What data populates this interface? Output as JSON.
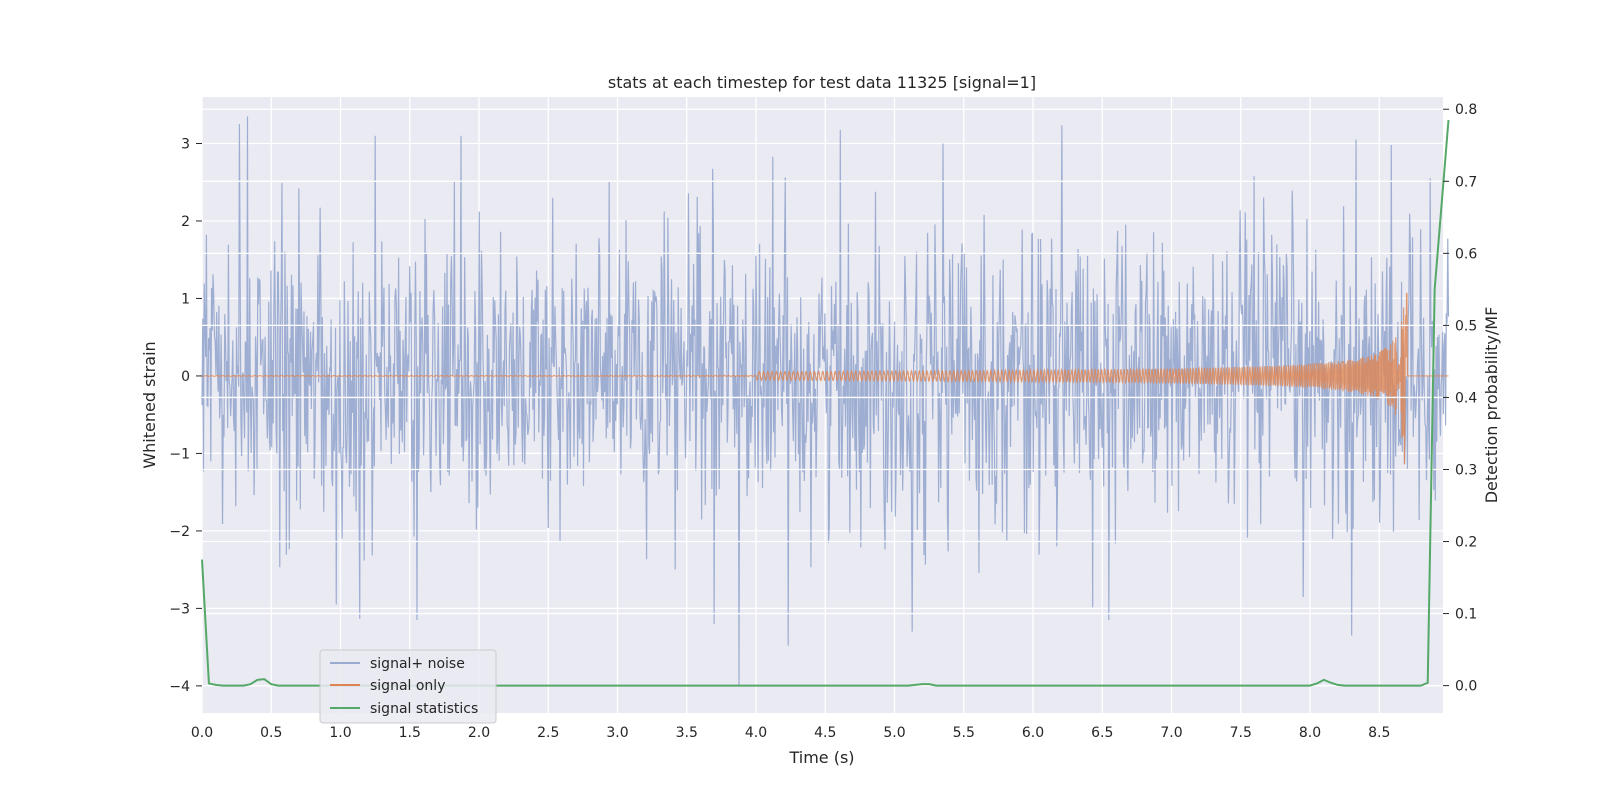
{
  "chart_data": {
    "type": "line",
    "title": "stats at each timestep for test data 11325 [signal=1]",
    "xlabel": "Time (s)",
    "ylabel": "Whitened strain",
    "y2label": "Detection probability/MF",
    "xlim": [
      0.0,
      9.0
    ],
    "ylim": [
      -4.35,
      3.6
    ],
    "y2lim": [
      -0.038,
      0.817
    ],
    "xticks": [
      0.0,
      0.5,
      1.0,
      1.5,
      2.0,
      2.5,
      3.0,
      3.5,
      4.0,
      4.5,
      5.0,
      5.5,
      6.0,
      6.5,
      7.0,
      7.5,
      8.0,
      8.5
    ],
    "xtick_labels": [
      "0.0",
      "0.5",
      "1.0",
      "1.5",
      "2.0",
      "2.5",
      "3.0",
      "3.5",
      "4.0",
      "4.5",
      "5.0",
      "5.5",
      "6.0",
      "6.5",
      "7.0",
      "7.5",
      "8.0",
      "8.5"
    ],
    "yticks": [
      -4,
      -3,
      -2,
      -1,
      0,
      1,
      2,
      3
    ],
    "ytick_labels": [
      "−4",
      "−3",
      "−2",
      "−1",
      "0",
      "1",
      "2",
      "3"
    ],
    "y2ticks": [
      0.0,
      0.1,
      0.2,
      0.3,
      0.4,
      0.5,
      0.6,
      0.7,
      0.8
    ],
    "y2tick_labels": [
      "0.0",
      "0.1",
      "0.2",
      "0.3",
      "0.4",
      "0.5",
      "0.6",
      "0.7",
      "0.8"
    ],
    "grid": true,
    "legend_position": "lower-left",
    "series": [
      {
        "name": "signal+ noise",
        "axis": "left",
        "color": "#9aabd0",
        "description_values": {
          "t_start": 0.0,
          "t_end": 9.0,
          "typical_amplitude": 1.0,
          "max": 3.35,
          "min": -4.0,
          "peaks": [
            [
              0.27,
              3.25
            ],
            [
              0.33,
              3.35
            ],
            [
              1.25,
              3.1
            ],
            [
              1.87,
              3.1
            ],
            [
              5.35,
              3.0
            ],
            [
              8.33,
              3.05
            ],
            [
              8.87,
              2.55
            ]
          ],
          "troughs": [
            [
              0.97,
              -2.95
            ],
            [
              1.55,
              -3.15
            ],
            [
              3.7,
              -3.2
            ],
            [
              3.88,
              -4.0
            ],
            [
              5.13,
              -3.3
            ],
            [
              6.55,
              -3.15
            ],
            [
              8.3,
              -3.35
            ]
          ]
        }
      },
      {
        "name": "signal only",
        "axis": "left",
        "color": "#dd8452",
        "description_values": {
          "t_start": 0.0,
          "t_chirp_end": 8.7,
          "envelope_peak": 1.3,
          "envelope_at_4.5": 0.02,
          "envelope_at_7.5": 0.09,
          "envelope_at_8.5": 0.45
        }
      },
      {
        "name": "signal statistics",
        "axis": "right",
        "color": "#55a868",
        "x": [
          0.0,
          0.05,
          0.1,
          0.15,
          0.2,
          0.25,
          0.3,
          0.35,
          0.4,
          0.45,
          0.5,
          0.55,
          0.6,
          5.0,
          5.1,
          5.2,
          5.25,
          5.3,
          5.4,
          8.0,
          8.05,
          8.1,
          8.15,
          8.2,
          8.25,
          8.3,
          8.8,
          8.85,
          8.9,
          9.0
        ],
        "y": [
          0.175,
          0.003,
          0.001,
          0.0,
          0.0,
          0.0,
          0.0,
          0.002,
          0.008,
          0.009,
          0.002,
          0.0,
          0.0,
          0.0,
          0.0,
          0.002,
          0.002,
          0.0,
          0.0,
          0.0,
          0.003,
          0.008,
          0.004,
          0.001,
          0.0,
          0.0,
          0.0,
          0.004,
          0.55,
          0.785
        ]
      }
    ]
  }
}
